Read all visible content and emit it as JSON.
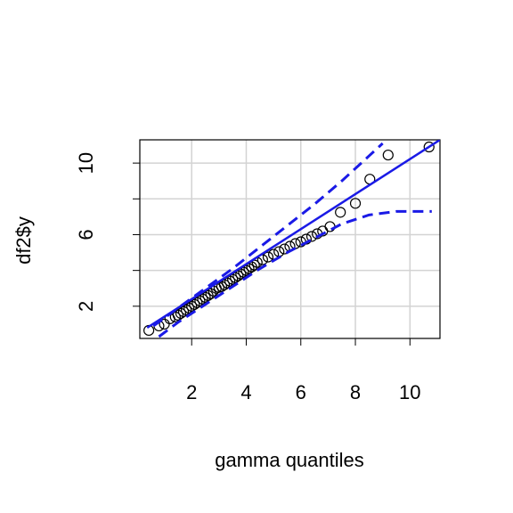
{
  "chart_data": {
    "type": "qqplot",
    "xlabel": "gamma quantiles",
    "ylabel": "df2$y",
    "xlim": [
      0.1,
      11.1
    ],
    "ylim": [
      0.2,
      11.3
    ],
    "xticks": [
      2,
      4,
      6,
      8,
      10
    ],
    "yticks": [
      2,
      6,
      10
    ],
    "yminor_ticks": [
      4,
      8
    ],
    "grid": true,
    "points": {
      "color": "#000000",
      "x": [
        0.43,
        0.8,
        1.0,
        1.2,
        1.4,
        1.5,
        1.6,
        1.7,
        1.8,
        1.9,
        2.0,
        2.1,
        2.2,
        2.3,
        2.4,
        2.5,
        2.6,
        2.7,
        2.8,
        2.9,
        3.0,
        3.1,
        3.2,
        3.3,
        3.4,
        3.5,
        3.6,
        3.7,
        3.8,
        3.9,
        4.0,
        4.1,
        4.2,
        4.3,
        4.4,
        4.6,
        4.8,
        5.0,
        5.2,
        5.4,
        5.6,
        5.8,
        6.0,
        6.2,
        6.4,
        6.6,
        6.8,
        7.07,
        7.45,
        8.0,
        8.53,
        9.2,
        10.7
      ],
      "y": [
        0.65,
        0.9,
        1.0,
        1.3,
        1.4,
        1.5,
        1.6,
        1.7,
        1.8,
        1.9,
        2.0,
        2.1,
        2.2,
        2.3,
        2.4,
        2.5,
        2.6,
        2.7,
        2.85,
        3.0,
        3.05,
        3.1,
        3.2,
        3.3,
        3.4,
        3.5,
        3.6,
        3.7,
        3.8,
        3.9,
        4.0,
        4.1,
        4.2,
        4.3,
        4.45,
        4.6,
        4.75,
        4.9,
        5.05,
        5.2,
        5.35,
        5.5,
        5.6,
        5.75,
        5.9,
        6.05,
        6.2,
        6.45,
        7.25,
        7.75,
        9.1,
        10.45,
        10.9
      ]
    },
    "reference_line": {
      "color": "#1a1ae6",
      "x": [
        0.37,
        11.1
      ],
      "y": [
        0.8,
        11.3
      ]
    },
    "bands": [
      {
        "color": "#1a1ae6",
        "x": [
          0.6,
          1.5,
          2.5,
          3.5,
          4.5,
          5.5,
          6.5,
          7.5,
          8.5,
          9.0
        ],
        "y": [
          0.9,
          1.9,
          3.0,
          4.1,
          5.3,
          6.5,
          7.7,
          9.0,
          10.4,
          11.1
        ]
      },
      {
        "color": "#1a1ae6",
        "x": [
          0.8,
          1.5,
          2.5,
          3.5,
          4.5,
          5.5,
          6.5,
          7.5,
          8.5,
          9.5,
          10.8
        ],
        "y": [
          0.3,
          1.1,
          2.1,
          3.1,
          4.1,
          5.0,
          5.8,
          6.6,
          7.1,
          7.3,
          7.3
        ]
      }
    ]
  }
}
